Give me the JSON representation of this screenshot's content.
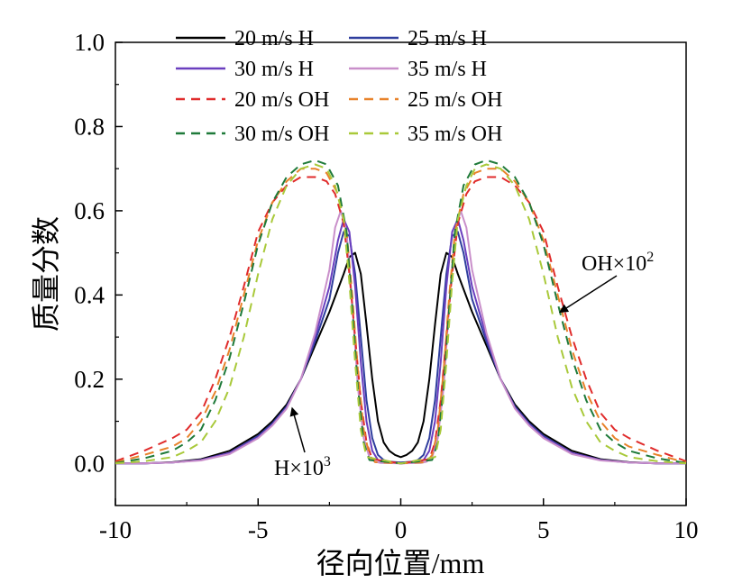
{
  "chart_data": {
    "type": "line",
    "xlabel": "径向位置/mm",
    "ylabel": "质量分数",
    "xlim": [
      -10,
      10
    ],
    "ylim": [
      -0.1,
      1.0
    ],
    "xticks": [
      "-10",
      "-5",
      "0",
      "5",
      "10"
    ],
    "yticks": [
      "0.0",
      "0.2",
      "0.4",
      "0.6",
      "0.8",
      "1.0"
    ],
    "legend": {
      "position": "top",
      "columns": 2
    },
    "grid": false,
    "annotations": [
      {
        "text": "OH×10",
        "sup": "2",
        "points_to": {
          "x": 5.6,
          "y": 0.36
        }
      },
      {
        "text": "H×10",
        "sup": "3",
        "points_to": {
          "x": -3.8,
          "y": 0.13
        }
      }
    ],
    "series": [
      {
        "name": "20 m/s H",
        "color": "#000000",
        "dash": "solid",
        "x": [
          -10,
          -9,
          -8,
          -7,
          -6,
          -5,
          -4.5,
          -4,
          -3.5,
          -3,
          -2.5,
          -2,
          -1.8,
          -1.6,
          -1.4,
          -1.2,
          -1,
          -0.8,
          -0.6,
          -0.4,
          -0.2,
          0,
          0.2,
          0.4,
          0.6,
          0.8,
          1,
          1.2,
          1.4,
          1.6,
          1.8,
          2,
          2.5,
          3,
          3.5,
          4,
          4.5,
          5,
          6,
          7,
          8,
          9,
          10
        ],
        "y": [
          0.0,
          0.0,
          0.003,
          0.01,
          0.03,
          0.07,
          0.1,
          0.14,
          0.2,
          0.28,
          0.36,
          0.45,
          0.49,
          0.5,
          0.45,
          0.33,
          0.2,
          0.1,
          0.05,
          0.03,
          0.02,
          0.015,
          0.02,
          0.03,
          0.05,
          0.1,
          0.2,
          0.33,
          0.45,
          0.5,
          0.49,
          0.45,
          0.36,
          0.28,
          0.2,
          0.14,
          0.1,
          0.07,
          0.03,
          0.01,
          0.003,
          0.0,
          0.0
        ]
      },
      {
        "name": "25 m/s H",
        "color": "#2f3e9e",
        "dash": "solid",
        "x": [
          -10,
          -9,
          -8,
          -7,
          -6,
          -5,
          -4.5,
          -4,
          -3.5,
          -3,
          -2.5,
          -2.2,
          -2,
          -1.8,
          -1.6,
          -1.4,
          -1.2,
          -1,
          -0.8,
          -0.6,
          -0.4,
          0,
          0.4,
          0.6,
          0.8,
          1,
          1.2,
          1.4,
          1.6,
          1.8,
          2,
          2.2,
          2.5,
          3,
          3.5,
          4,
          4.5,
          5,
          6,
          7,
          8,
          9,
          10
        ],
        "y": [
          0.0,
          0.0,
          0.002,
          0.008,
          0.025,
          0.065,
          0.095,
          0.135,
          0.2,
          0.29,
          0.39,
          0.5,
          0.55,
          0.54,
          0.45,
          0.3,
          0.15,
          0.06,
          0.02,
          0.008,
          0.004,
          0.002,
          0.004,
          0.008,
          0.02,
          0.06,
          0.15,
          0.3,
          0.45,
          0.54,
          0.55,
          0.5,
          0.39,
          0.29,
          0.2,
          0.135,
          0.095,
          0.065,
          0.025,
          0.008,
          0.002,
          0.0,
          0.0
        ]
      },
      {
        "name": "30 m/s H",
        "color": "#6a3fbf",
        "dash": "solid",
        "x": [
          -10,
          -9,
          -8,
          -7,
          -6,
          -5,
          -4.5,
          -4,
          -3.5,
          -3,
          -2.5,
          -2.2,
          -2,
          -1.8,
          -1.6,
          -1.4,
          -1.2,
          -1,
          -0.8,
          -0.6,
          0,
          0.6,
          0.8,
          1,
          1.2,
          1.4,
          1.6,
          1.8,
          2,
          2.2,
          2.5,
          3,
          3.5,
          4,
          4.5,
          5,
          6,
          7,
          8,
          9,
          10
        ],
        "y": [
          0.0,
          0.0,
          0.002,
          0.008,
          0.025,
          0.062,
          0.092,
          0.132,
          0.2,
          0.3,
          0.42,
          0.53,
          0.58,
          0.55,
          0.42,
          0.24,
          0.1,
          0.03,
          0.008,
          0.002,
          0.0,
          0.002,
          0.008,
          0.03,
          0.1,
          0.24,
          0.42,
          0.55,
          0.58,
          0.53,
          0.42,
          0.3,
          0.2,
          0.132,
          0.092,
          0.062,
          0.025,
          0.008,
          0.002,
          0.0,
          0.0
        ]
      },
      {
        "name": "35 m/s H",
        "color": "#c98fca",
        "dash": "solid",
        "x": [
          -10,
          -9,
          -8,
          -7,
          -6,
          -5,
          -4.5,
          -4,
          -3.5,
          -3,
          -2.5,
          -2.3,
          -2.1,
          -1.9,
          -1.7,
          -1.5,
          -1.3,
          -1.1,
          -0.9,
          -0.7,
          0,
          0.7,
          0.9,
          1.1,
          1.3,
          1.5,
          1.7,
          1.9,
          2.1,
          2.3,
          2.5,
          3,
          3.5,
          4,
          4.5,
          5,
          6,
          7,
          8,
          9,
          10
        ],
        "y": [
          0.0,
          0.0,
          0.002,
          0.007,
          0.022,
          0.06,
          0.09,
          0.13,
          0.2,
          0.31,
          0.46,
          0.56,
          0.6,
          0.55,
          0.38,
          0.18,
          0.06,
          0.015,
          0.004,
          0.001,
          0.0,
          0.001,
          0.004,
          0.015,
          0.06,
          0.18,
          0.38,
          0.55,
          0.6,
          0.56,
          0.46,
          0.31,
          0.2,
          0.13,
          0.09,
          0.06,
          0.022,
          0.007,
          0.002,
          0.0,
          0.0
        ]
      },
      {
        "name": "20 m/s OH",
        "color": "#e02b2b",
        "dash": "dashed",
        "x": [
          -10,
          -9,
          -8,
          -7.5,
          -7,
          -6.5,
          -6,
          -5.5,
          -5,
          -4.5,
          -4,
          -3.5,
          -3,
          -2.6,
          -2.3,
          -2,
          -1.8,
          -1.6,
          -1.4,
          -1.2,
          -1,
          0,
          1,
          1.2,
          1.4,
          1.6,
          1.8,
          2,
          2.3,
          2.6,
          3,
          3.5,
          4,
          4.5,
          5,
          5.5,
          6,
          6.5,
          7,
          7.5,
          8,
          9,
          10
        ],
        "y": [
          0.005,
          0.03,
          0.06,
          0.08,
          0.12,
          0.2,
          0.3,
          0.42,
          0.55,
          0.62,
          0.66,
          0.68,
          0.68,
          0.67,
          0.64,
          0.57,
          0.45,
          0.3,
          0.15,
          0.05,
          0.01,
          0.0,
          0.01,
          0.05,
          0.15,
          0.3,
          0.45,
          0.57,
          0.64,
          0.67,
          0.68,
          0.68,
          0.66,
          0.62,
          0.55,
          0.42,
          0.3,
          0.2,
          0.12,
          0.08,
          0.06,
          0.03,
          0.005
        ]
      },
      {
        "name": "25 m/s OH",
        "color": "#e8822a",
        "dash": "dashed",
        "x": [
          -10,
          -9,
          -8,
          -7.5,
          -7,
          -6.5,
          -6,
          -5.5,
          -5,
          -4.5,
          -4,
          -3.5,
          -3,
          -2.6,
          -2.2,
          -1.9,
          -1.7,
          -1.5,
          -1.3,
          -1.1,
          -0.9,
          0,
          0.9,
          1.1,
          1.3,
          1.5,
          1.7,
          1.9,
          2.2,
          2.6,
          3,
          3.5,
          4,
          4.5,
          5,
          5.5,
          6,
          6.5,
          7,
          7.5,
          8,
          9,
          10
        ],
        "y": [
          0.002,
          0.02,
          0.04,
          0.06,
          0.1,
          0.17,
          0.27,
          0.4,
          0.53,
          0.62,
          0.67,
          0.7,
          0.7,
          0.69,
          0.64,
          0.55,
          0.4,
          0.22,
          0.08,
          0.02,
          0.003,
          0.0,
          0.003,
          0.02,
          0.08,
          0.22,
          0.4,
          0.55,
          0.64,
          0.69,
          0.7,
          0.7,
          0.67,
          0.62,
          0.53,
          0.4,
          0.27,
          0.17,
          0.1,
          0.06,
          0.04,
          0.02,
          0.002
        ]
      },
      {
        "name": "30 m/s OH",
        "color": "#1f7a3a",
        "dash": "dashed",
        "x": [
          -10,
          -9,
          -8,
          -7.5,
          -7,
          -6.5,
          -6,
          -5.5,
          -5,
          -4.5,
          -4,
          -3.5,
          -3,
          -2.6,
          -2.2,
          -1.9,
          -1.7,
          -1.5,
          -1.3,
          -1.1,
          0,
          1.1,
          1.3,
          1.5,
          1.7,
          1.9,
          2.2,
          2.6,
          3,
          3.5,
          4,
          4.5,
          5,
          5.5,
          6,
          6.5,
          7,
          7.5,
          8,
          9,
          10
        ],
        "y": [
          0.001,
          0.012,
          0.03,
          0.05,
          0.08,
          0.15,
          0.25,
          0.38,
          0.52,
          0.62,
          0.68,
          0.71,
          0.72,
          0.71,
          0.66,
          0.55,
          0.37,
          0.18,
          0.05,
          0.008,
          0.0,
          0.008,
          0.05,
          0.18,
          0.37,
          0.55,
          0.66,
          0.71,
          0.72,
          0.71,
          0.68,
          0.62,
          0.52,
          0.38,
          0.25,
          0.15,
          0.08,
          0.05,
          0.03,
          0.012,
          0.001
        ]
      },
      {
        "name": "35 m/s OH",
        "color": "#a9c93a",
        "dash": "dashed",
        "x": [
          -10,
          -9,
          -8,
          -7.5,
          -7,
          -6.5,
          -6,
          -5.5,
          -5,
          -4.5,
          -4,
          -3.5,
          -3,
          -2.6,
          -2.3,
          -2,
          -1.8,
          -1.6,
          -1.4,
          -1.2,
          0,
          1.2,
          1.4,
          1.6,
          1.8,
          2,
          2.3,
          2.6,
          3,
          3.5,
          4,
          4.5,
          5,
          5.5,
          6,
          6.5,
          7,
          7.5,
          8,
          9,
          10
        ],
        "y": [
          0.0,
          0.005,
          0.015,
          0.03,
          0.05,
          0.1,
          0.18,
          0.3,
          0.45,
          0.58,
          0.66,
          0.7,
          0.71,
          0.7,
          0.66,
          0.58,
          0.43,
          0.24,
          0.08,
          0.015,
          0.0,
          0.015,
          0.08,
          0.24,
          0.43,
          0.58,
          0.66,
          0.7,
          0.71,
          0.7,
          0.66,
          0.58,
          0.45,
          0.3,
          0.18,
          0.1,
          0.05,
          0.03,
          0.015,
          0.005,
          0.0
        ]
      }
    ]
  }
}
